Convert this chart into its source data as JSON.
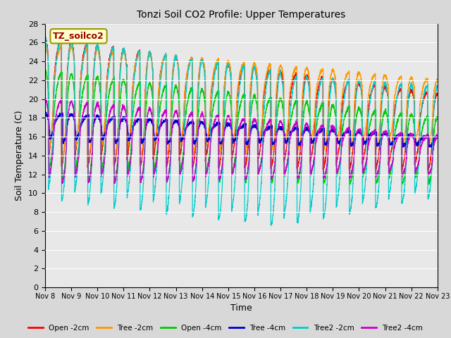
{
  "title": "Tonzi Soil CO2 Profile: Upper Temperatures",
  "xlabel": "Time",
  "ylabel": "Soil Temperature (C)",
  "ylim": [
    0,
    28
  ],
  "yticks": [
    0,
    2,
    4,
    6,
    8,
    10,
    12,
    14,
    16,
    18,
    20,
    22,
    24,
    26,
    28
  ],
  "xtick_labels": [
    "Nov 8",
    "Nov 9",
    "Nov 10",
    "Nov 11",
    "Nov 12",
    "Nov 13",
    "Nov 14",
    "Nov 15",
    "Nov 16",
    "Nov 17",
    "Nov 18",
    "Nov 19",
    "Nov 20",
    "Nov 21",
    "Nov 22",
    "Nov 23"
  ],
  "num_days": 15,
  "figsize": [
    6.4,
    4.8
  ],
  "dpi": 100,
  "series": [
    {
      "label": "Open -2cm",
      "color": "#ff0000"
    },
    {
      "label": "Tree -2cm",
      "color": "#ff9900"
    },
    {
      "label": "Open -4cm",
      "color": "#00cc00"
    },
    {
      "label": "Tree -4cm",
      "color": "#0000cc"
    },
    {
      "label": "Tree2 -2cm",
      "color": "#00cccc"
    },
    {
      "label": "Tree2 -4cm",
      "color": "#cc00cc"
    }
  ],
  "annotation_text": "TZ_soilco2",
  "annotation_color": "#990000",
  "annotation_bg": "#ffffcc",
  "annotation_border": "#999900",
  "bg_color": "#d8d8d8",
  "plot_bg_color": "#e8e8e8"
}
